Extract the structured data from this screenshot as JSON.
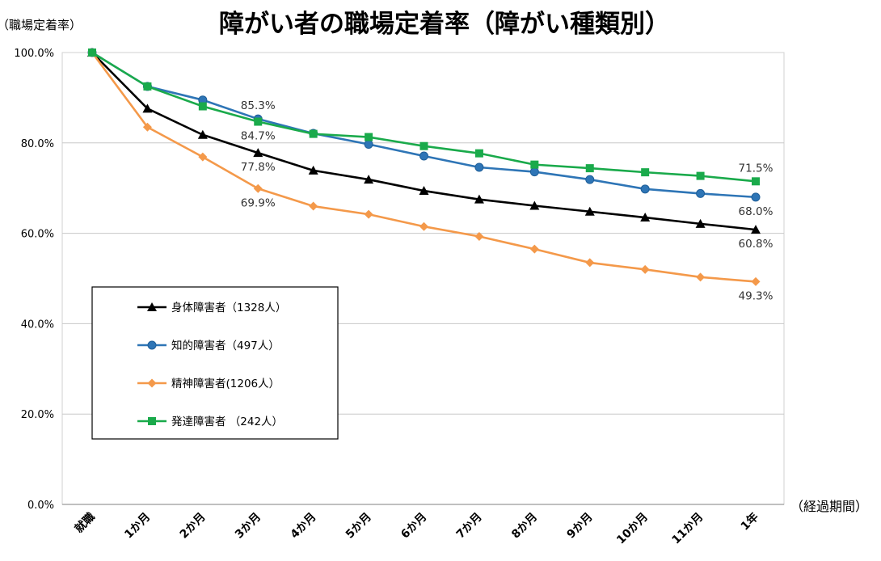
{
  "chart_data": {
    "type": "line",
    "title": "障がい者の職場定着率（障がい種類別）",
    "ylabel": "（職場定着率）",
    "xlabel": "（経過期間）",
    "categories": [
      "就職",
      "1か月",
      "2か月",
      "3か月",
      "4か月",
      "5か月",
      "6か月",
      "7か月",
      "8か月",
      "9か月",
      "10か月",
      "11か月",
      "1年"
    ],
    "ylim": [
      0,
      100
    ],
    "yticks": [
      0,
      20,
      40,
      60,
      80,
      100
    ],
    "ytick_labels": [
      "0.0%",
      "20.0%",
      "40.0%",
      "60.0%",
      "80.0%",
      "100.0%"
    ],
    "grid": true,
    "legend_position": "bottom-left",
    "series": [
      {
        "name": "身体障害者（1328人）",
        "color": "#000000",
        "marker": "triangle",
        "values": [
          100,
          87.6,
          81.8,
          77.8,
          73.9,
          71.9,
          69.4,
          67.5,
          66.1,
          64.8,
          63.5,
          62.1,
          60.8
        ]
      },
      {
        "name": "知的障害者（497人）",
        "color": "#2e75b6",
        "marker": "circle",
        "values": [
          100,
          92.5,
          89.5,
          85.3,
          82.1,
          79.7,
          77.1,
          74.6,
          73.6,
          71.9,
          69.8,
          68.8,
          68.0
        ]
      },
      {
        "name": "精神障害者(1206人）",
        "color": "#f4994a",
        "marker": "diamond",
        "values": [
          100,
          83.5,
          76.9,
          69.9,
          66.0,
          64.2,
          61.5,
          59.3,
          56.5,
          53.5,
          52.0,
          50.3,
          49.3
        ]
      },
      {
        "name": "発達障害者 （242人）",
        "color": "#1aaa4b",
        "marker": "square",
        "values": [
          100,
          92.5,
          88.1,
          84.7,
          82.0,
          81.3,
          79.3,
          77.7,
          75.2,
          74.4,
          73.5,
          72.7,
          71.5
        ]
      }
    ],
    "annotations": [
      {
        "text": "85.3%",
        "series": 1,
        "index": 3,
        "pos": "above"
      },
      {
        "text": "84.7%",
        "series": 3,
        "index": 3,
        "pos": "below"
      },
      {
        "text": "77.8%",
        "series": 0,
        "index": 3,
        "pos": "below"
      },
      {
        "text": "69.9%",
        "series": 2,
        "index": 3,
        "pos": "below"
      },
      {
        "text": "71.5%",
        "series": 3,
        "index": 12,
        "pos": "above"
      },
      {
        "text": "68.0%",
        "series": 1,
        "index": 12,
        "pos": "below"
      },
      {
        "text": "60.8%",
        "series": 0,
        "index": 12,
        "pos": "below"
      },
      {
        "text": "49.3%",
        "series": 2,
        "index": 12,
        "pos": "below"
      }
    ]
  }
}
